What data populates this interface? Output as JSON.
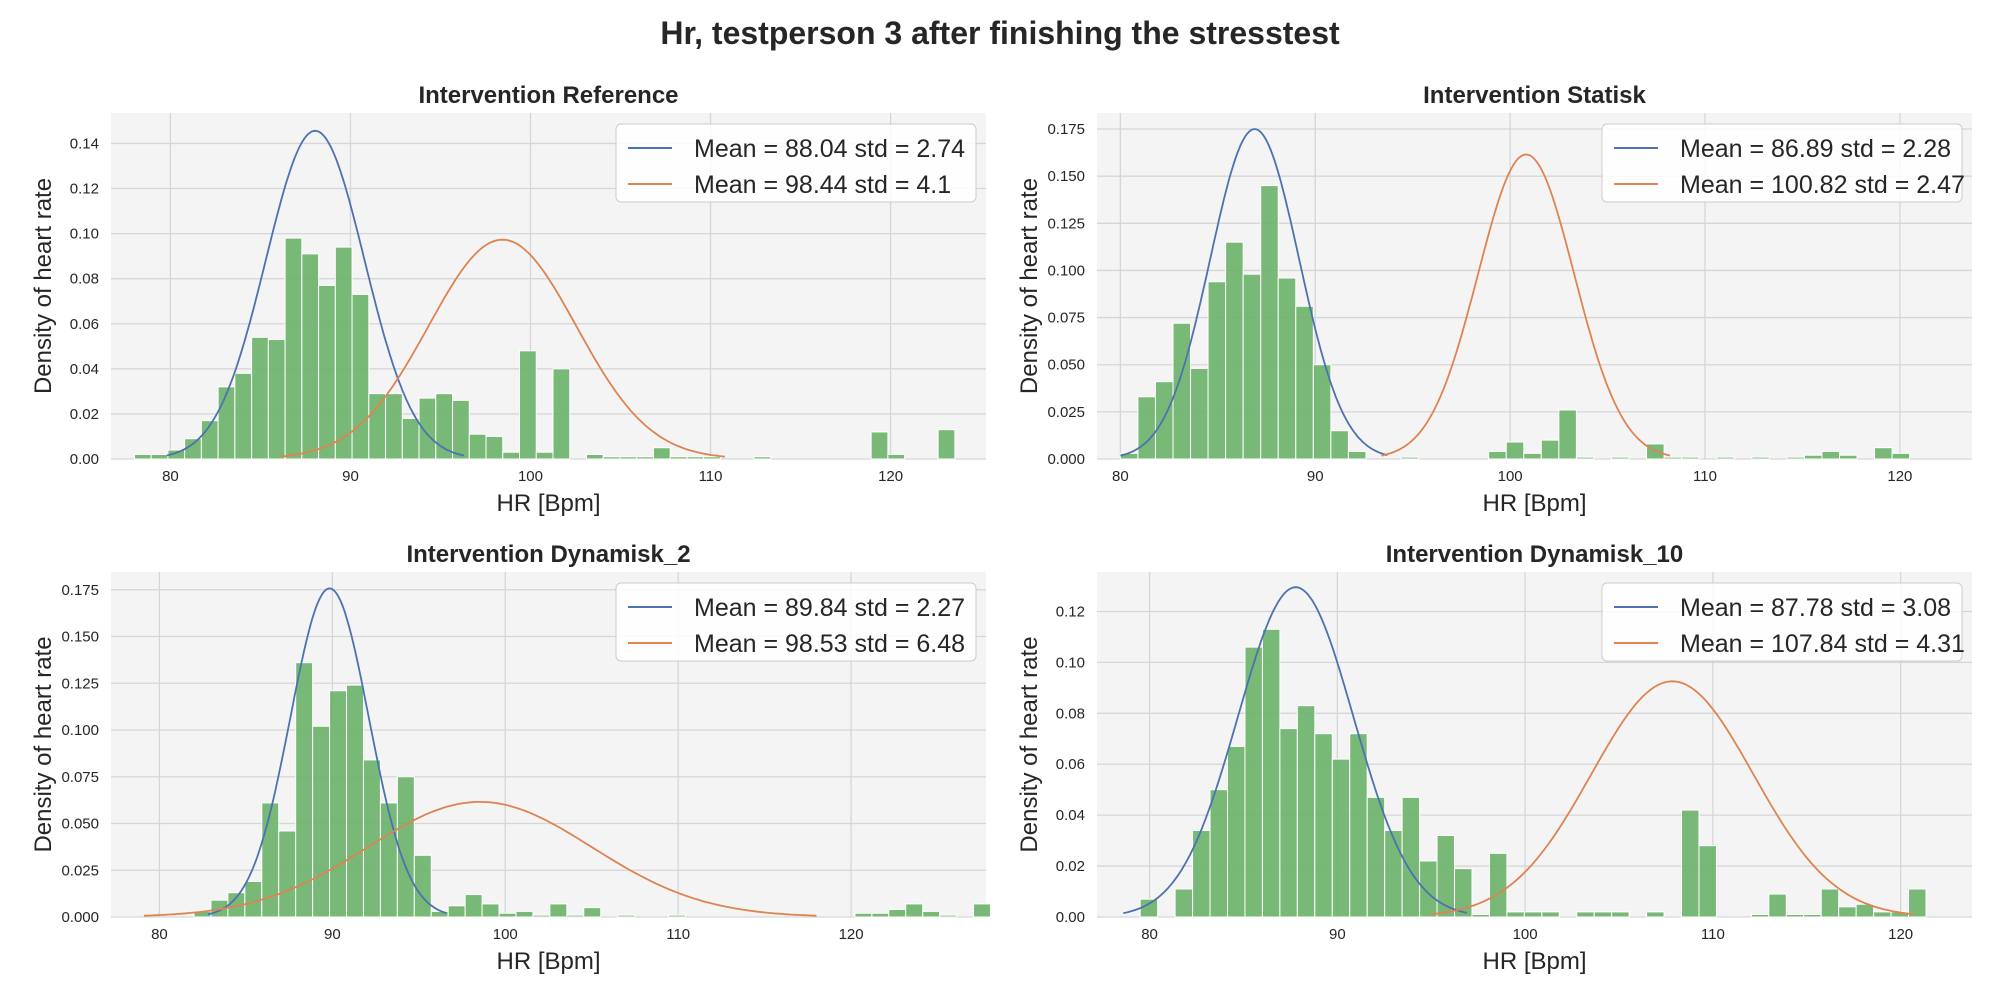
{
  "figure_title": "Hr, testperson 3 after finishing the stresstest",
  "colors": {
    "hist": "#6ab36a",
    "hist_edge": "#ffffff",
    "fit1": "#4c72b0",
    "fit2": "#dd8452",
    "plot_bg": "#f4f4f4",
    "grid": "#d6d6d6"
  },
  "chart_data": [
    {
      "type": "bar",
      "title": "Intervention Reference",
      "xlabel": "HR [Bpm]",
      "ylabel": "Density of heart rate",
      "xlim": [
        76.7,
        125.3
      ],
      "ylim": [
        0,
        0.1535
      ],
      "xticks": [
        80,
        90,
        100,
        110,
        120
      ],
      "yticks": [
        0.0,
        0.02,
        0.04,
        0.06,
        0.08,
        0.1,
        0.12,
        0.14
      ],
      "ytick_labels": [
        "0.00",
        "0.02",
        "0.04",
        "0.06",
        "0.08",
        "0.10",
        "0.12",
        "0.14"
      ],
      "bins": {
        "start": 78,
        "width": 0.93,
        "values": [
          0.002,
          0.002,
          0.004,
          0.009,
          0.017,
          0.032,
          0.038,
          0.054,
          0.053,
          0.098,
          0.091,
          0.077,
          0.094,
          0.073,
          0.029,
          0.029,
          0.018,
          0.027,
          0.029,
          0.026,
          0.011,
          0.01,
          0.003,
          0.048,
          0.003,
          0.04,
          0,
          0.002,
          0.001,
          0.001,
          0.001,
          0.005,
          0.001,
          0.001,
          0.001,
          0,
          0,
          0.001,
          0,
          0,
          0,
          0,
          0,
          0,
          0.012,
          0.002,
          0,
          0,
          0.013
        ]
      },
      "series": [
        {
          "name": "Mean = 88.04 std = 2.74",
          "mean": 88.04,
          "std": 2.74,
          "x_range": [
            79.8,
            96.3
          ]
        },
        {
          "name": "Mean = 98.44 std = 4.1",
          "mean": 98.44,
          "std": 4.1,
          "x_range": [
            86.1,
            110.8
          ]
        }
      ]
    },
    {
      "type": "bar",
      "title": "Intervention Statisk",
      "xlabel": "HR [Bpm]",
      "ylabel": "Density of heart rate",
      "xlim": [
        78.8,
        123.7
      ],
      "ylim": [
        0,
        0.1835
      ],
      "xticks": [
        80,
        90,
        100,
        110,
        120
      ],
      "yticks": [
        0,
        0.025,
        0.05,
        0.075,
        0.1,
        0.125,
        0.15,
        0.175
      ],
      "ytick_labels": [
        "0.000",
        "0.025",
        "0.050",
        "0.075",
        "0.100",
        "0.125",
        "0.150",
        "0.175"
      ],
      "bins": {
        "start": 80,
        "width": 0.9,
        "values": [
          0.003,
          0.033,
          0.041,
          0.072,
          0.048,
          0.094,
          0.115,
          0.098,
          0.145,
          0.096,
          0.081,
          0.05,
          0.015,
          0.004,
          0,
          0,
          0.001,
          0,
          0,
          0,
          0,
          0.004,
          0.009,
          0.003,
          0.01,
          0.026,
          0.001,
          0,
          0.001,
          0,
          0.008,
          0.001,
          0.001,
          0,
          0.001,
          0,
          0.001,
          0,
          0.001,
          0.002,
          0.004,
          0.002,
          0,
          0.006,
          0.003
        ]
      },
      "series": [
        {
          "name": "Mean = 86.89 std = 2.28",
          "mean": 86.89,
          "std": 2.28,
          "x_range": [
            80,
            93.7
          ]
        },
        {
          "name": "Mean = 100.82 std = 2.47",
          "mean": 100.82,
          "std": 2.47,
          "x_range": [
            93.4,
            108.2
          ]
        }
      ]
    },
    {
      "type": "bar",
      "title": "Intervention Dynamisk_2",
      "xlabel": "HR [Bpm]",
      "ylabel": "Density of heart rate",
      "xlim": [
        77.2,
        127.8
      ],
      "ylim": [
        0,
        0.1845
      ],
      "xticks": [
        80,
        90,
        100,
        110,
        120
      ],
      "yticks": [
        0,
        0.025,
        0.05,
        0.075,
        0.1,
        0.125,
        0.15,
        0.175
      ],
      "ytick_labels": [
        "0.000",
        "0.025",
        "0.050",
        "0.075",
        "0.100",
        "0.125",
        "0.150",
        "0.175"
      ],
      "bins": {
        "start": 82,
        "width": 0.98,
        "values": [
          0.003,
          0.009,
          0.013,
          0.019,
          0.061,
          0.046,
          0.136,
          0.102,
          0.121,
          0.124,
          0.084,
          0.061,
          0.075,
          0.033,
          0.003,
          0.006,
          0.012,
          0.007,
          0.002,
          0.003,
          0.001,
          0.007,
          0.001,
          0.005,
          0,
          0.001,
          0,
          0,
          0.001,
          0,
          0,
          0,
          0,
          0,
          0,
          0,
          0,
          0,
          0,
          0.002,
          0.002,
          0.004,
          0.007,
          0.003,
          0.001,
          0,
          0.007
        ]
      },
      "series": [
        {
          "name": "Mean = 89.84 std = 2.27",
          "mean": 89.84,
          "std": 2.27,
          "x_range": [
            82.8,
            96.6
          ]
        },
        {
          "name": "Mean = 98.53 std = 6.48",
          "mean": 98.53,
          "std": 6.48,
          "x_range": [
            79.1,
            118
          ]
        }
      ]
    },
    {
      "type": "bar",
      "title": "Intervention Dynamisk_10",
      "xlabel": "HR [Bpm]",
      "ylabel": "Density of heart rate",
      "xlim": [
        77.2,
        123.8
      ],
      "ylim": [
        0,
        0.1355
      ],
      "xticks": [
        80,
        90,
        100,
        110,
        120
      ],
      "yticks": [
        0,
        0.02,
        0.04,
        0.06,
        0.08,
        0.1,
        0.12
      ],
      "ytick_labels": [
        "0.00",
        "0.02",
        "0.04",
        "0.06",
        "0.08",
        "0.10",
        "0.12"
      ],
      "bins": {
        "start": 79.5,
        "width": 0.93,
        "values": [
          0.007,
          0,
          0.011,
          0.034,
          0.05,
          0.067,
          0.106,
          0.113,
          0.074,
          0.083,
          0.072,
          0.062,
          0.072,
          0.047,
          0.034,
          0.047,
          0.022,
          0.032,
          0.019,
          0.001,
          0.025,
          0.002,
          0.002,
          0.002,
          0,
          0.002,
          0.002,
          0.002,
          0,
          0.002,
          0,
          0.042,
          0.028,
          0,
          0,
          0.001,
          0.009,
          0.001,
          0.001,
          0.011,
          0.004,
          0.005,
          0.002,
          0.002,
          0.011
        ]
      },
      "series": [
        {
          "name": "Mean = 87.78 std = 3.08",
          "mean": 87.78,
          "std": 3.08,
          "x_range": [
            78.6,
            96.9
          ]
        },
        {
          "name": "Mean = 107.84 std = 4.31",
          "mean": 107.84,
          "std": 4.31,
          "x_range": [
            95,
            120.7
          ]
        }
      ]
    }
  ]
}
